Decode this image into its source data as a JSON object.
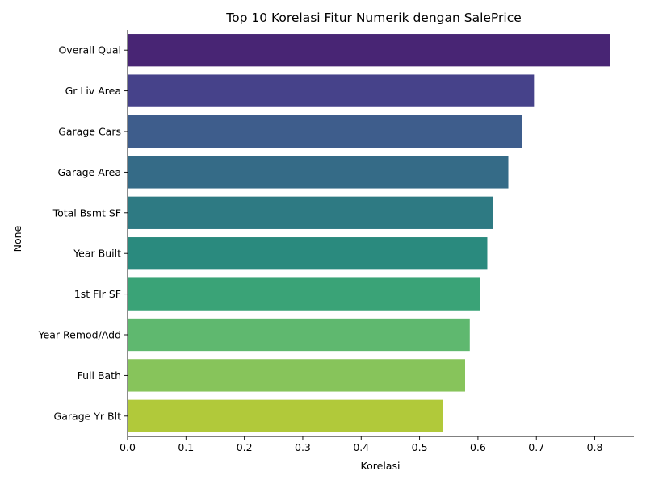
{
  "chart_data": {
    "type": "bar",
    "orientation": "horizontal",
    "title": "Top 10 Korelasi Fitur Numerik dengan SalePrice",
    "xlabel": "Korelasi",
    "ylabel": "None",
    "categories": [
      "Overall Qual",
      "Gr Liv Area",
      "Garage Cars",
      "Garage Area",
      "Total Bsmt SF",
      "Year Built",
      "1st Flr SF",
      "Year Remod/Add",
      "Full Bath",
      "Garage Yr Blt"
    ],
    "values": [
      0.826,
      0.696,
      0.675,
      0.652,
      0.626,
      0.616,
      0.603,
      0.586,
      0.578,
      0.54
    ],
    "xlim": [
      0,
      0.867
    ],
    "xticks": [
      0.0,
      0.1,
      0.2,
      0.3,
      0.4,
      0.5,
      0.6,
      0.7,
      0.8
    ],
    "xtick_labels": [
      "0.0",
      "0.1",
      "0.2",
      "0.3",
      "0.4",
      "0.5",
      "0.6",
      "0.7",
      "0.8"
    ],
    "colors": [
      "#482574",
      "#46428a",
      "#3e5d8c",
      "#356b87",
      "#2e7a83",
      "#2a8a7e",
      "#3aa377",
      "#5fb86f",
      "#87c45b",
      "#b1c93a"
    ],
    "grid": false,
    "legend": "none"
  }
}
